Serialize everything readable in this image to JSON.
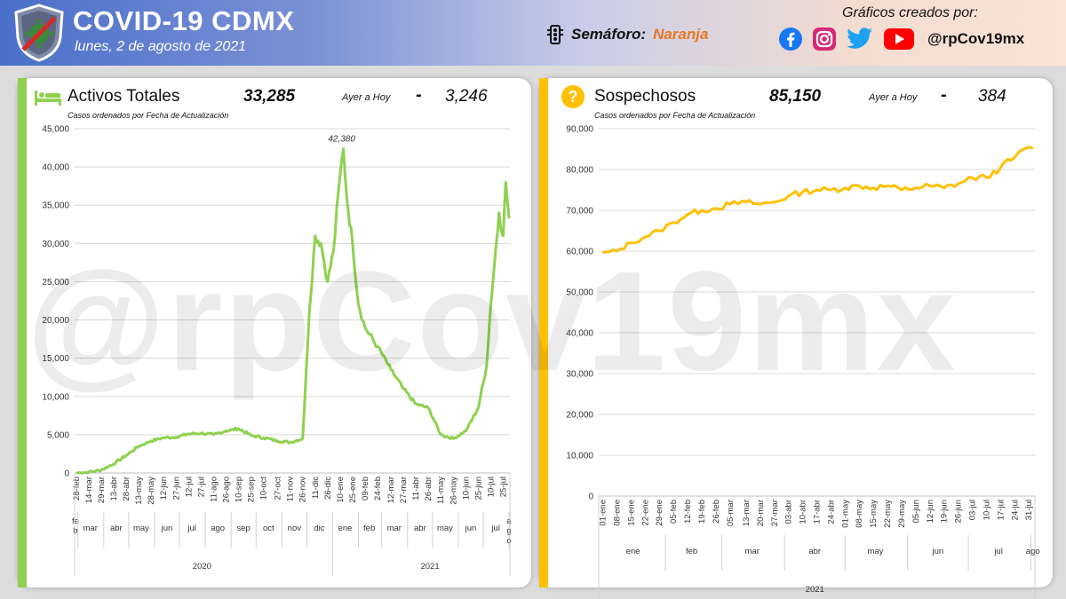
{
  "header": {
    "title": "COVID-19 CDMX",
    "date": "lunes, 2 de agosto de 2021",
    "semaforo_label": "Semáforo:",
    "semaforo_value": "Naranja",
    "credits": "Gráficos creados por:",
    "handle": "@rpCov19mx",
    "colors": {
      "accent_orange": "#e87722",
      "brand_blue": "#4a6fc9"
    },
    "icons": [
      "shield-virus-icon",
      "traffic-light-icon",
      "facebook-icon",
      "instagram-icon",
      "twitter-icon",
      "youtube-icon"
    ]
  },
  "watermark": "@rpCov19mx",
  "panels": {
    "left": {
      "title": "Activos Totales",
      "value": "33,285",
      "ayer_label": "Ayer a Hoy",
      "dash": "-",
      "delta": "3,246",
      "subtitle": "Casos ordenados por Fecha de Actualización",
      "peak_label": "42,380",
      "icon": "bed-icon",
      "color": "#8ed14f"
    },
    "right": {
      "title": "Sospechosos",
      "value": "85,150",
      "ayer_label": "Ayer a Hoy",
      "dash": "-",
      "delta": "384",
      "subtitle": "Casos ordenados por Fecha de Actualización",
      "icon": "question-icon",
      "color": "#ffc000"
    }
  },
  "chart_data": [
    {
      "type": "line",
      "title": "Activos Totales",
      "ylim": [
        0,
        45000
      ],
      "yticks": [
        "0",
        "5,000",
        "10,000",
        "15,000",
        "20,000",
        "25,000",
        "30,000",
        "35,000",
        "40,000",
        "45,000"
      ],
      "x_tick_labels": [
        "28-feb",
        "14-mar",
        "29-mar",
        "13-abr",
        "28-abr",
        "13-may",
        "28-may",
        "12-jun",
        "27-jun",
        "12-jul",
        "27-jul",
        "11-ago",
        "26-ago",
        "10-sep",
        "25-sep",
        "10-oct",
        "27-oct",
        "11-nov",
        "26-nov",
        "11-dic",
        "26-dic",
        "10-ene",
        "25-ene",
        "09-feb",
        "24-feb",
        "12-mar",
        "27-mar",
        "11-abr",
        "26-abr",
        "11-may",
        "26-may",
        "10-jun",
        "25-jun",
        "10-jul",
        "25-jul"
      ],
      "month_labels": [
        "fe b",
        "mar",
        "abr",
        "may",
        "jun",
        "jul",
        "ago",
        "sep",
        "oct",
        "nov",
        "dic",
        "ene",
        "feb",
        "mar",
        "abr",
        "may",
        "jun",
        "jul",
        "a g o"
      ],
      "year_labels": [
        "2020",
        "2021"
      ],
      "grid": true,
      "legend": "none",
      "peak_annotation": "42,380",
      "series": [
        {
          "color": "#8ed14f",
          "x": [
            "2020-02-28",
            "2020-03-14",
            "2020-03-29",
            "2020-04-13",
            "2020-04-28",
            "2020-05-13",
            "2020-05-28",
            "2020-06-12",
            "2020-06-27",
            "2020-07-12",
            "2020-07-27",
            "2020-08-11",
            "2020-08-26",
            "2020-09-10",
            "2020-09-25",
            "2020-10-10",
            "2020-10-27",
            "2020-11-11",
            "2020-11-26",
            "2020-12-04",
            "2020-12-11",
            "2020-12-18",
            "2020-12-26",
            "2021-01-02",
            "2021-01-10",
            "2021-01-14",
            "2021-01-18",
            "2021-01-25",
            "2021-02-01",
            "2021-02-09",
            "2021-02-24",
            "2021-03-12",
            "2021-03-27",
            "2021-04-11",
            "2021-04-26",
            "2021-05-11",
            "2021-05-26",
            "2021-06-10",
            "2021-06-25",
            "2021-07-05",
            "2021-07-10",
            "2021-07-15",
            "2021-07-20",
            "2021-07-25",
            "2021-07-28",
            "2021-08-01"
          ],
          "y": [
            0,
            100,
            400,
            1200,
            2300,
            3500,
            4200,
            4600,
            4700,
            5100,
            5200,
            5000,
            5500,
            5800,
            4900,
            4600,
            4200,
            4000,
            4500,
            21000,
            31000,
            30000,
            25000,
            29000,
            39000,
            42380,
            36000,
            30000,
            22000,
            19000,
            16500,
            13500,
            11000,
            9000,
            8500,
            5000,
            4500,
            5500,
            8500,
            14000,
            22000,
            28000,
            34000,
            31000,
            38000,
            33285
          ]
        }
      ]
    },
    {
      "type": "line",
      "title": "Sospechosos",
      "ylim": [
        0,
        90000
      ],
      "yticks": [
        "0",
        "10,000",
        "20,000",
        "30,000",
        "40,000",
        "50,000",
        "60,000",
        "70,000",
        "80,000",
        "90,000"
      ],
      "x_tick_labels": [
        "01-ene",
        "08-ene",
        "15-ene",
        "22-ene",
        "29-ene",
        "05-feb",
        "12-feb",
        "19-feb",
        "26-feb",
        "05-mar",
        "13-mar",
        "20-mar",
        "27-mar",
        "03-abr",
        "10-abr",
        "17-abr",
        "24-abr",
        "01-may",
        "08-may",
        "15-may",
        "22-may",
        "29-may",
        "05-jun",
        "12-jun",
        "19-jun",
        "26-jun",
        "03-jul",
        "10-jul",
        "17-jul",
        "24-jul",
        "31-jul"
      ],
      "month_labels": [
        "ene",
        "feb",
        "mar",
        "abr",
        "may",
        "jun",
        "jul",
        "ago"
      ],
      "year_labels": [
        "2021"
      ],
      "grid": true,
      "legend": "none",
      "series": [
        {
          "color": "#ffc000",
          "x": [
            "2021-01-01",
            "2021-01-08",
            "2021-01-15",
            "2021-01-22",
            "2021-01-29",
            "2021-02-05",
            "2021-02-12",
            "2021-02-19",
            "2021-02-26",
            "2021-03-05",
            "2021-03-13",
            "2021-03-20",
            "2021-03-27",
            "2021-04-03",
            "2021-04-10",
            "2021-04-17",
            "2021-04-24",
            "2021-05-01",
            "2021-05-08",
            "2021-05-15",
            "2021-05-22",
            "2021-05-29",
            "2021-06-05",
            "2021-06-12",
            "2021-06-19",
            "2021-06-26",
            "2021-07-03",
            "2021-07-10",
            "2021-07-17",
            "2021-07-24",
            "2021-07-31",
            "2021-08-02"
          ],
          "y": [
            59500,
            60000,
            62000,
            63500,
            65000,
            67000,
            69000,
            70000,
            70500,
            71500,
            72000,
            71500,
            72000,
            73500,
            74500,
            75000,
            75000,
            75500,
            76000,
            75500,
            76000,
            75000,
            75500,
            76000,
            75500,
            76500,
            78000,
            78000,
            80500,
            83000,
            85500,
            85150
          ]
        }
      ]
    }
  ]
}
